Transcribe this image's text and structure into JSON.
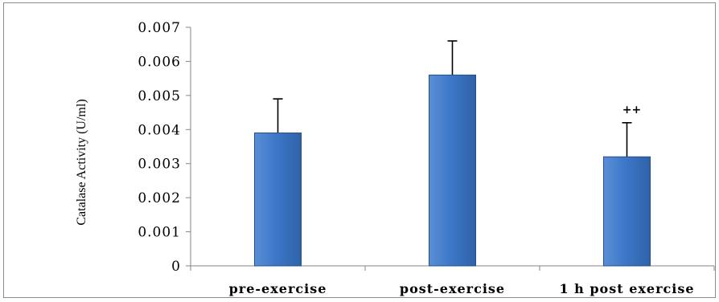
{
  "chart_data": {
    "type": "bar",
    "title": "",
    "xlabel": "",
    "ylabel": "Catalase Activity (U/ml)",
    "categories": [
      "pre-exercise",
      "post-exercise",
      "1 h post exercise"
    ],
    "series": [
      {
        "values": [
          0.0039,
          0.0056,
          0.0032
        ],
        "error_upper": [
          0.001,
          0.001,
          0.001
        ]
      }
    ],
    "annotations": [
      {
        "category": "1 h post exercise",
        "text": "++"
      }
    ],
    "ylim": [
      0,
      0.007
    ],
    "yticks": [
      0,
      0.001,
      0.002,
      0.003,
      0.004,
      0.005,
      0.006,
      0.007
    ],
    "ytick_labels": [
      "0",
      "0.001",
      "0.002",
      "0.003",
      "0.004",
      "0.005",
      "0.006",
      "0.007"
    ],
    "grid": false,
    "legend": "none",
    "colors": {
      "bar_top": "#5a8fd6",
      "bar_mid": "#3d78c8",
      "bar_bottom": "#2f62a8",
      "bar_edge": "#244f8c",
      "axis": "#868686",
      "frame": "#8c8c8c"
    }
  }
}
